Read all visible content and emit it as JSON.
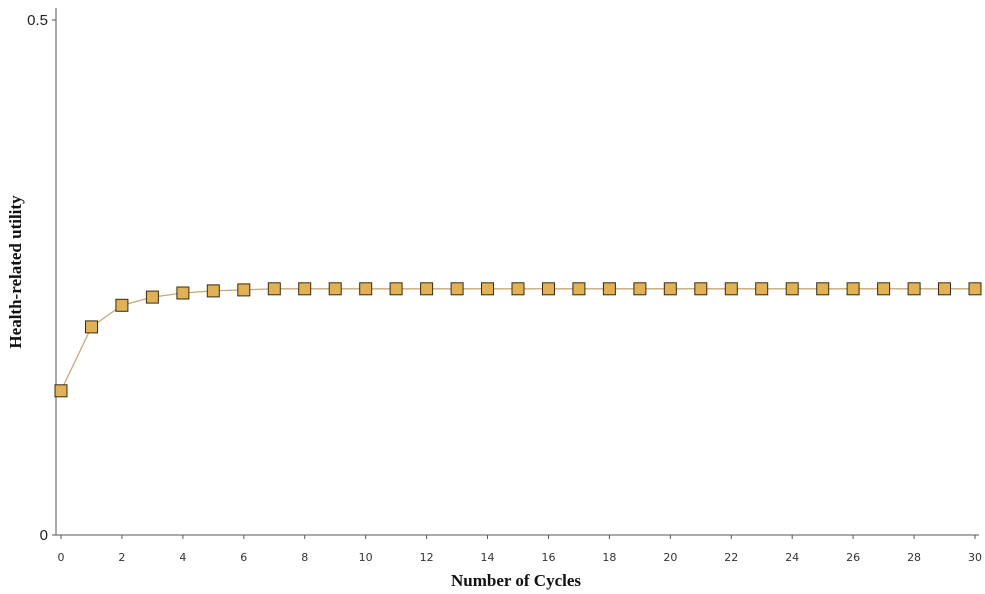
{
  "chart_data": {
    "type": "line",
    "title": "",
    "xlabel": "Number of Cycles",
    "ylabel": "Health-related utility",
    "xlim": [
      0,
      30
    ],
    "ylim": [
      0,
      0.5
    ],
    "xticks": [
      "0",
      "2",
      "4",
      "6",
      "8",
      "10",
      "12",
      "14",
      "16",
      "18",
      "20",
      "22",
      "24",
      "26",
      "28",
      "30"
    ],
    "yticks": [
      "0",
      "0.5"
    ],
    "grid": false,
    "legend": "none",
    "series": [
      {
        "marker": "square",
        "color": "#e0b155",
        "line_color": "#c9a877",
        "x": [
          0,
          1,
          2,
          3,
          4,
          5,
          6,
          7,
          8,
          9,
          10,
          11,
          12,
          13,
          14,
          15,
          16,
          17,
          18,
          19,
          20,
          21,
          22,
          23,
          24,
          25,
          26,
          27,
          28,
          29,
          30
        ],
        "y": [
          0.14,
          0.202,
          0.223,
          0.231,
          0.235,
          0.237,
          0.238,
          0.239,
          0.239,
          0.239,
          0.239,
          0.239,
          0.239,
          0.239,
          0.239,
          0.239,
          0.239,
          0.239,
          0.239,
          0.239,
          0.239,
          0.239,
          0.239,
          0.239,
          0.239,
          0.239,
          0.239,
          0.239,
          0.239,
          0.239,
          0.239
        ]
      }
    ]
  }
}
